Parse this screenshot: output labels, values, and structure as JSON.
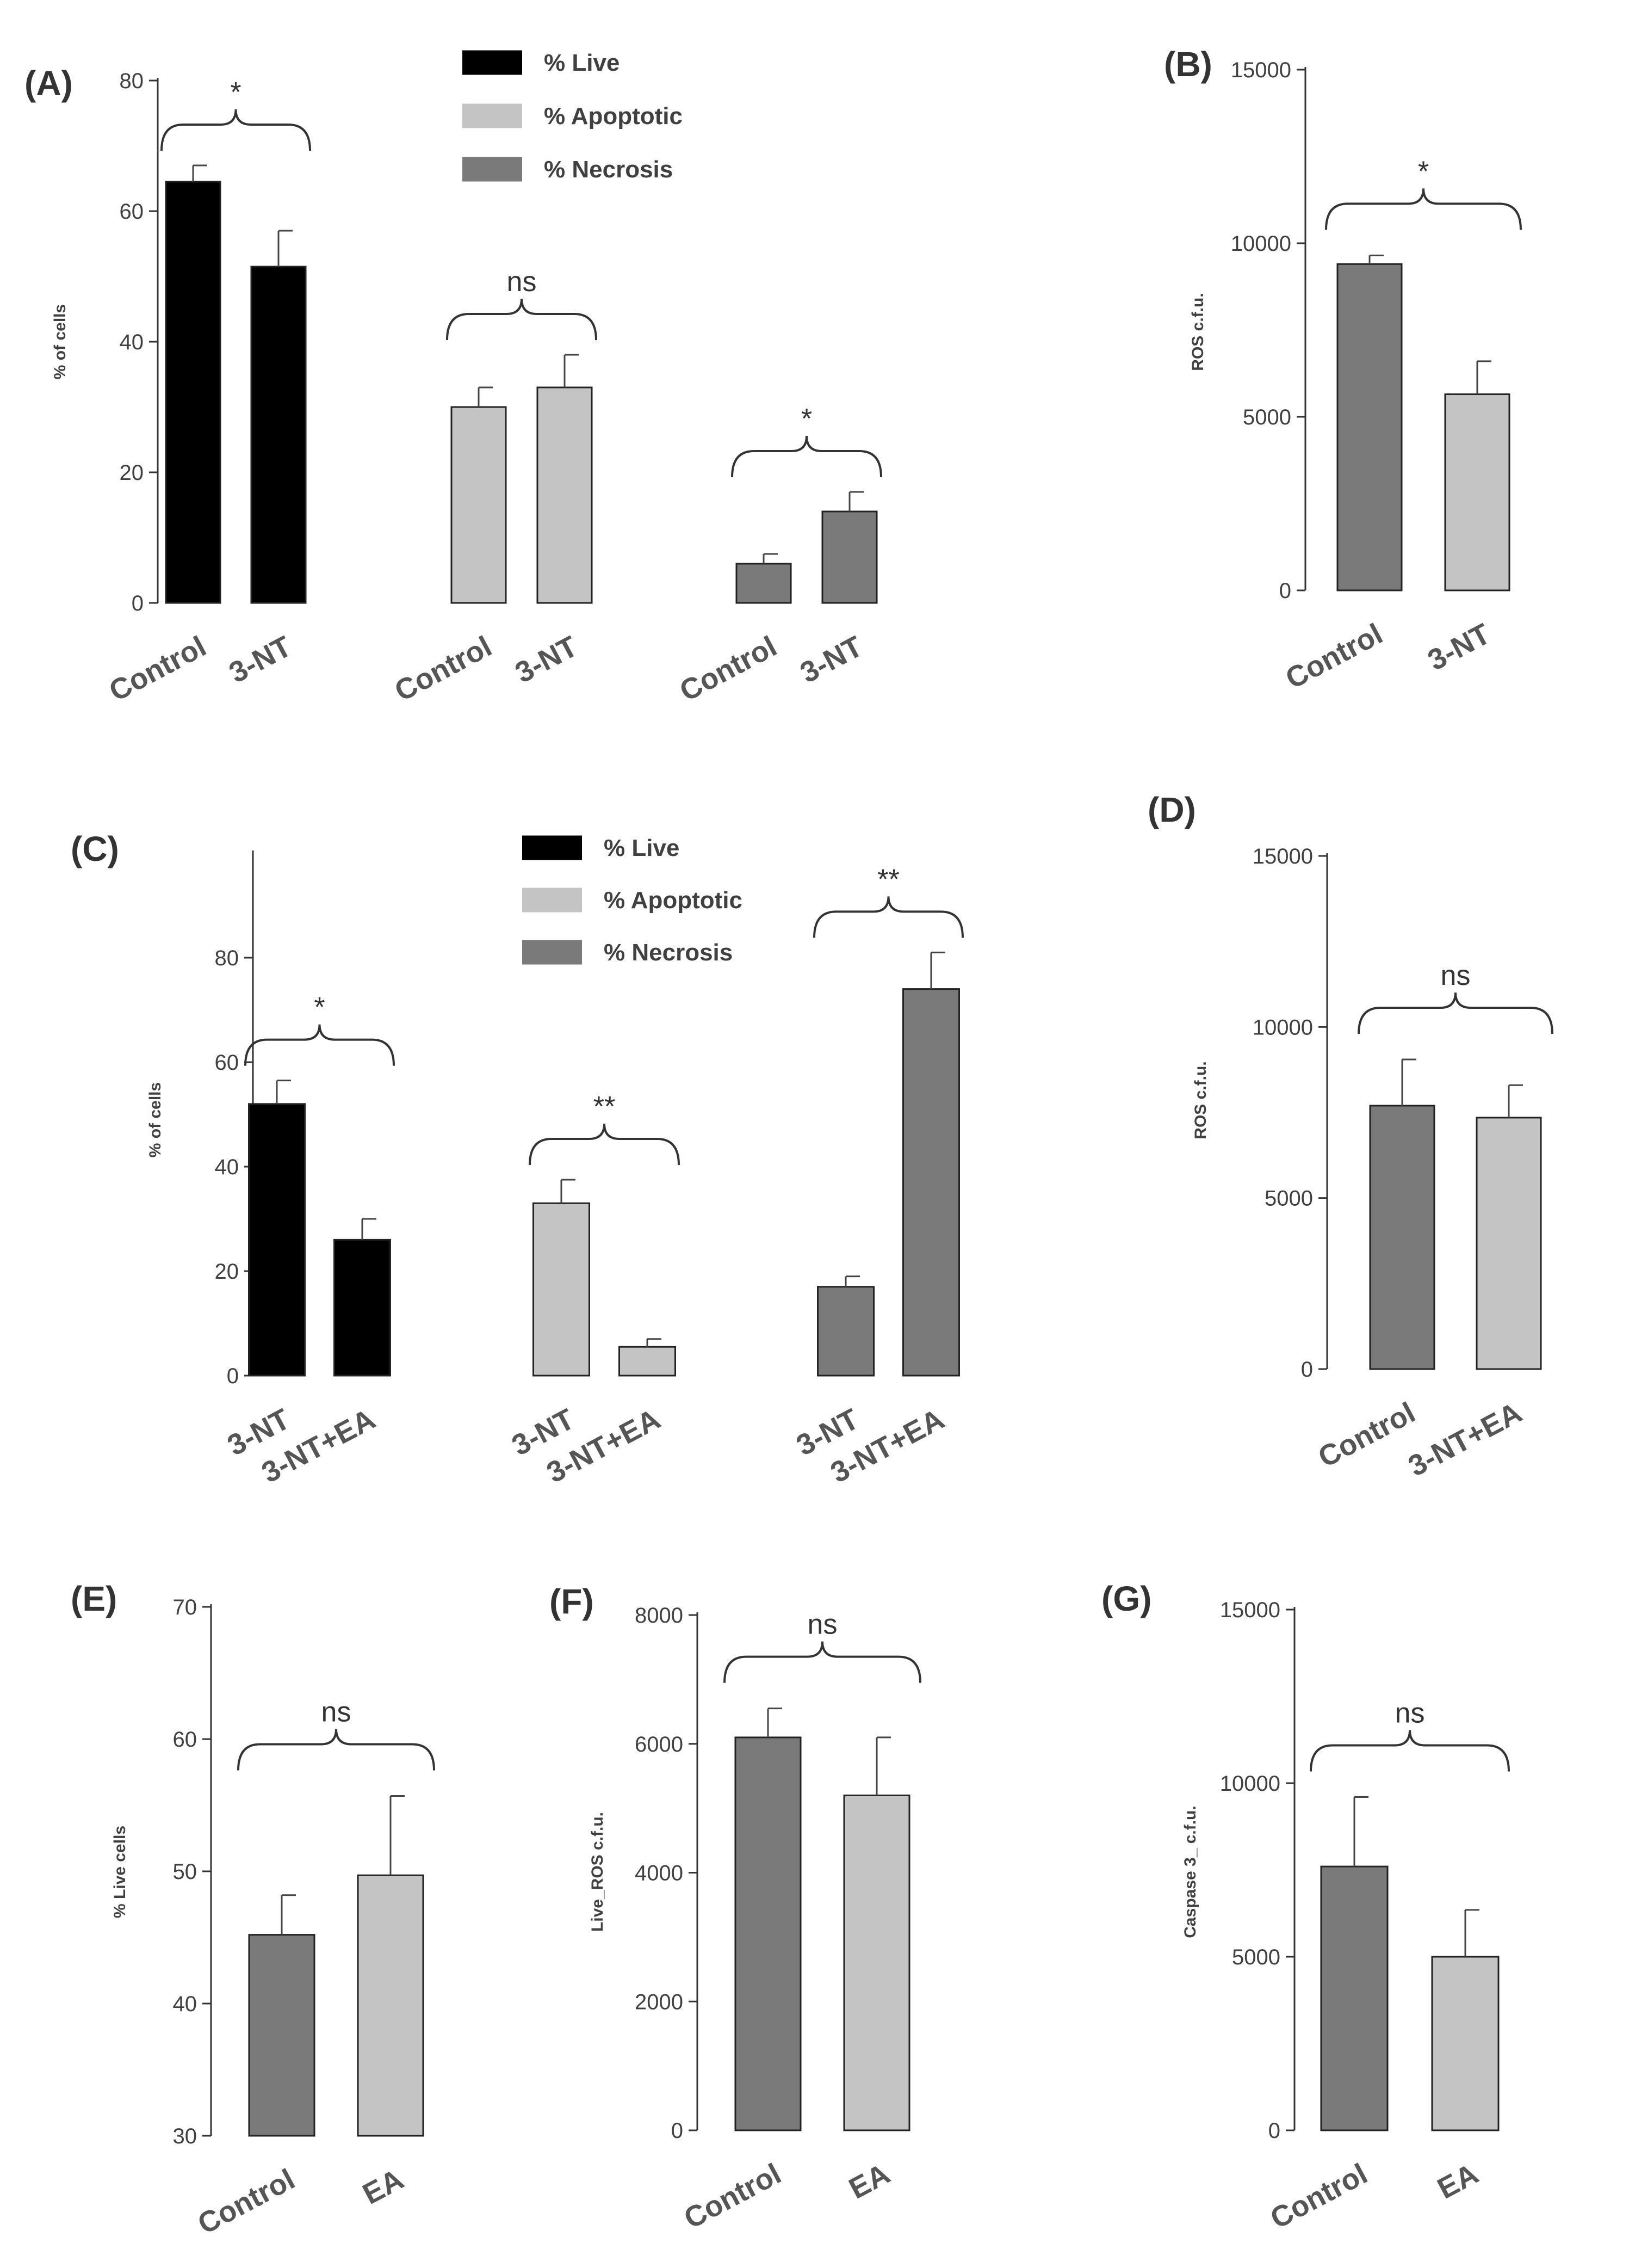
{
  "chart_data": [
    {
      "panel": "(A)",
      "type": "bar",
      "ylabel": "% of cells",
      "ylim": [
        0,
        80
      ],
      "yticks": [
        "0",
        "20",
        "40",
        "60",
        "80"
      ],
      "legend": [
        "% Live",
        "% Apoptotic",
        "% Necrosis"
      ],
      "series_colors": [
        "#000000",
        "#c4c4c4",
        "#7a7a7a"
      ],
      "groups": [
        {
          "series": "% Live",
          "categories": [
            "Control",
            "3-NT"
          ],
          "values": [
            64.5,
            51.5
          ],
          "errors": [
            2.5,
            5.5
          ],
          "significance": "*"
        },
        {
          "series": "% Apoptotic",
          "categories": [
            "Control",
            "3-NT"
          ],
          "values": [
            30,
            33
          ],
          "errors": [
            3,
            5
          ],
          "significance": "ns"
        },
        {
          "series": "% Necrosis",
          "categories": [
            "Control",
            "3-NT"
          ],
          "values": [
            6,
            14
          ],
          "errors": [
            1.5,
            3
          ],
          "significance": "*"
        }
      ]
    },
    {
      "panel": "(B)",
      "type": "bar",
      "ylabel": "ROS c.f.u.",
      "ylim": [
        0,
        15000
      ],
      "yticks": [
        "0",
        "5000",
        "10000",
        "15000"
      ],
      "categories": [
        "Control",
        "3-NT"
      ],
      "values": [
        9400,
        5650
      ],
      "errors": [
        250,
        950
      ],
      "colors": [
        "#7a7a7a",
        "#c4c4c4"
      ],
      "significance": "*"
    },
    {
      "panel": "(C)",
      "type": "bar",
      "ylabel": "% of cells",
      "ylim": [
        0,
        100
      ],
      "yticks": [
        "0",
        "20",
        "40",
        "60",
        "80"
      ],
      "legend": [
        "% Live",
        "% Apoptotic",
        "% Necrosis"
      ],
      "series_colors": [
        "#000000",
        "#c4c4c4",
        "#7a7a7a"
      ],
      "groups": [
        {
          "series": "% Live",
          "categories": [
            "3-NT",
            "3-NT+EA"
          ],
          "values": [
            52,
            26
          ],
          "errors": [
            4.5,
            4
          ],
          "significance": "*"
        },
        {
          "series": "% Apoptotic",
          "categories": [
            "3-NT",
            "3-NT+EA"
          ],
          "values": [
            33,
            5.5
          ],
          "errors": [
            4.5,
            1.5
          ],
          "significance": "**"
        },
        {
          "series": "% Necrosis",
          "categories": [
            "3-NT",
            "3-NT+EA"
          ],
          "values": [
            17,
            74
          ],
          "errors": [
            2,
            7
          ],
          "significance": "**"
        }
      ]
    },
    {
      "panel": "(D)",
      "type": "bar",
      "ylabel": "ROS c.f.u.",
      "ylim": [
        0,
        15000
      ],
      "yticks": [
        "0",
        "5000",
        "10000",
        "15000"
      ],
      "categories": [
        "Control",
        "3-NT+EA"
      ],
      "values": [
        7700,
        7350
      ],
      "errors": [
        1350,
        950
      ],
      "colors": [
        "#7a7a7a",
        "#c4c4c4"
      ],
      "significance": "ns"
    },
    {
      "panel": "(E)",
      "type": "bar",
      "ylabel": "% Live cells",
      "ylim": [
        30,
        70
      ],
      "yticks": [
        "30",
        "40",
        "50",
        "60",
        "70"
      ],
      "categories": [
        "Control",
        "EA"
      ],
      "values": [
        45.2,
        49.7
      ],
      "errors": [
        3,
        6
      ],
      "colors": [
        "#7a7a7a",
        "#c4c4c4"
      ],
      "significance": "ns"
    },
    {
      "panel": "(F)",
      "type": "bar",
      "ylabel": "Live_ROS c.f.u.",
      "ylim": [
        0,
        8000
      ],
      "yticks": [
        "0",
        "2000",
        "4000",
        "6000",
        "8000"
      ],
      "categories": [
        "Control",
        "EA"
      ],
      "values": [
        6100,
        5200
      ],
      "errors": [
        450,
        900
      ],
      "colors": [
        "#7a7a7a",
        "#c4c4c4"
      ],
      "significance": "ns"
    },
    {
      "panel": "(G)",
      "type": "bar",
      "ylabel": "Caspase 3_ c.f.u.",
      "ylim": [
        0,
        15000
      ],
      "yticks": [
        "0",
        "5000",
        "10000",
        "15000"
      ],
      "categories": [
        "Control",
        "EA"
      ],
      "values": [
        7600,
        5000
      ],
      "errors": [
        2000,
        1350
      ],
      "colors": [
        "#7a7a7a",
        "#c4c4c4"
      ],
      "significance": "ns"
    }
  ]
}
